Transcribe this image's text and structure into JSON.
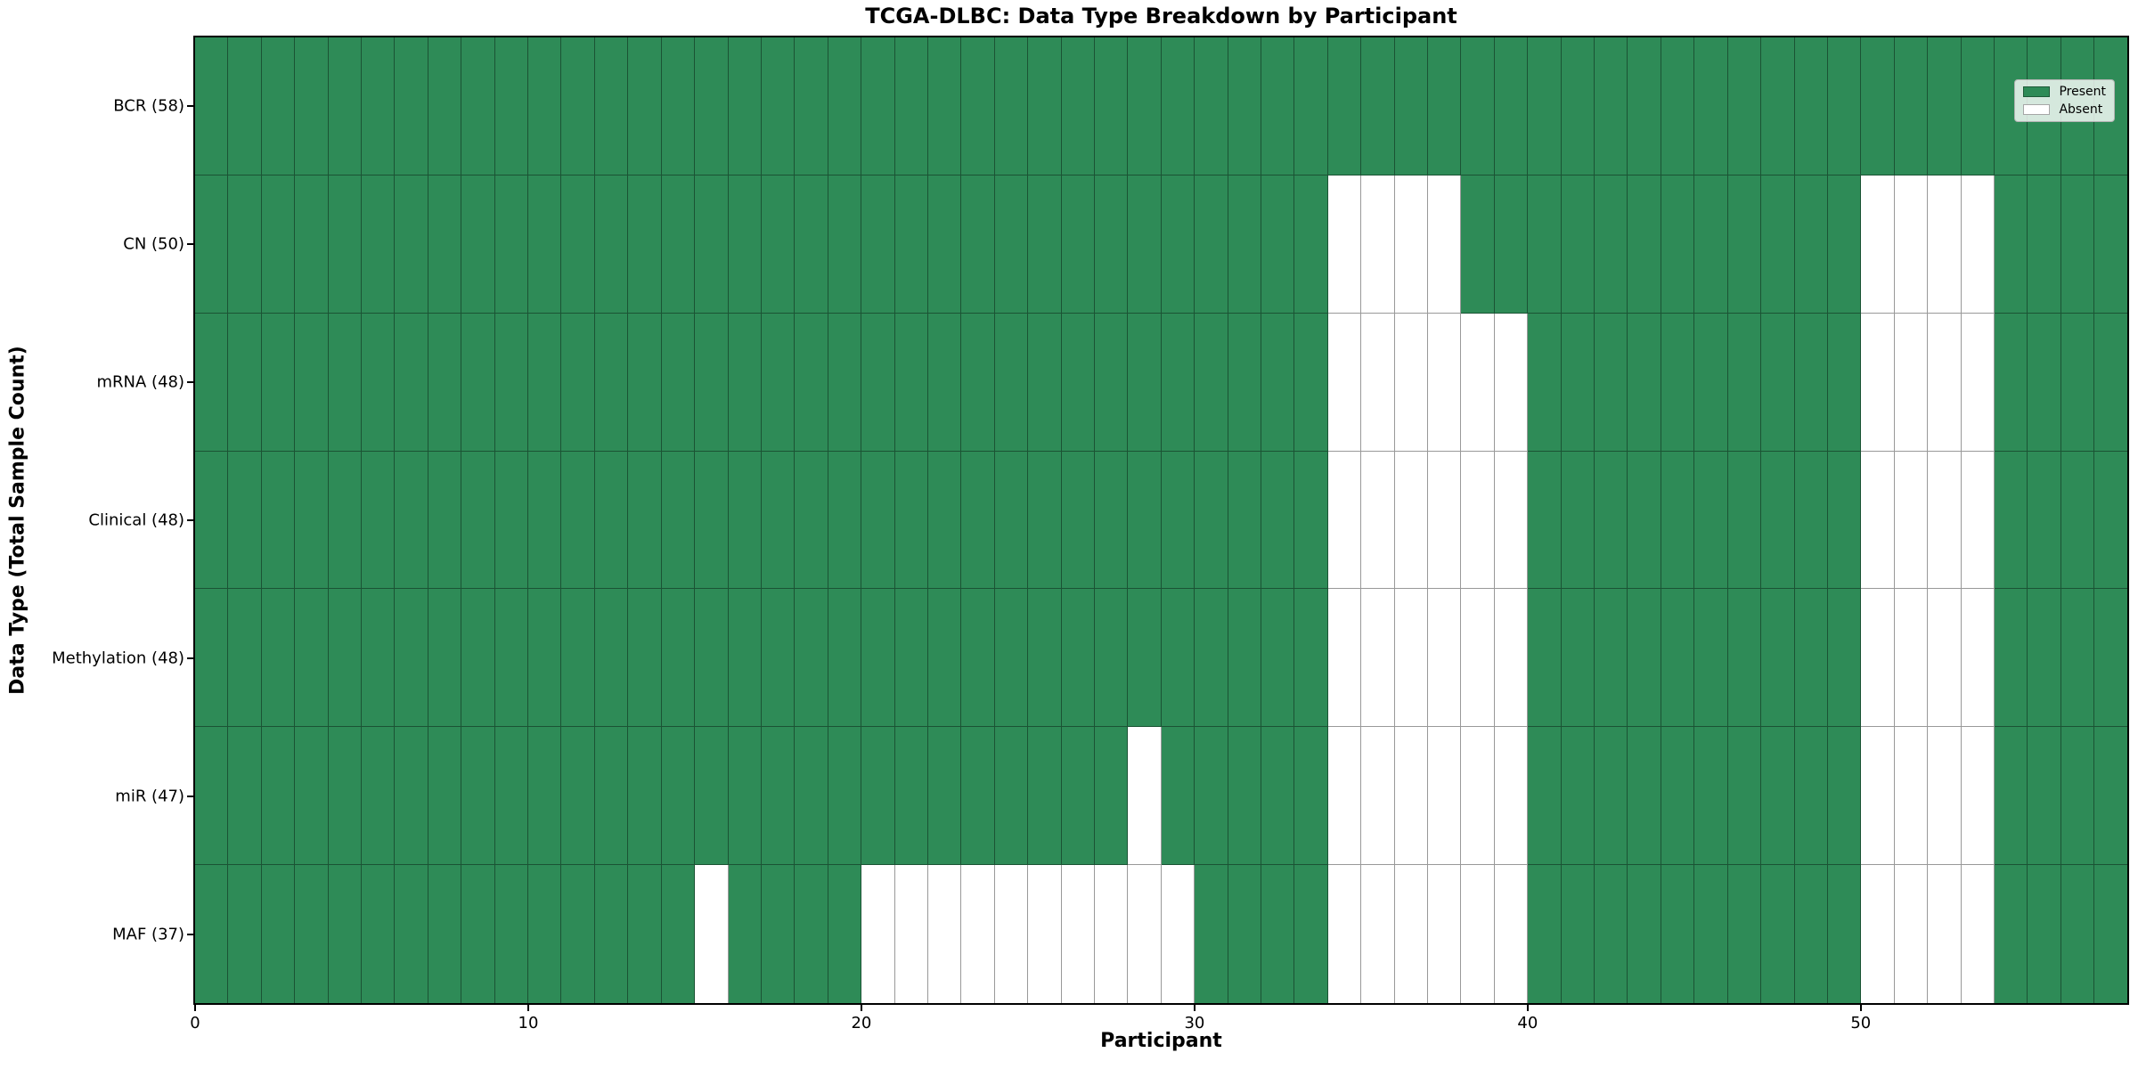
{
  "figure": {
    "title": "TCGA-DLBC: Data Type Breakdown by Participant",
    "xlabel": "Participant",
    "ylabel": "Data Type (Total Sample Count)"
  },
  "legend": {
    "position": "upper right",
    "entries": [
      {
        "label": "Present",
        "color": "#2E8B57"
      },
      {
        "label": "Absent",
        "color": "#FFFFFF"
      }
    ]
  },
  "colors": {
    "present": "#2E8B57",
    "absent": "#FFFFFF",
    "grid_line": "rgba(0,0,0,0.40)",
    "axis": "#000000",
    "legend_bg": "rgba(255,255,255,0.8)",
    "legend_border": "#b3b3b3"
  },
  "x_axis": {
    "range": [
      0,
      58
    ],
    "ticks": [
      {
        "value": 0,
        "label": "0"
      },
      {
        "value": 10,
        "label": "10"
      },
      {
        "value": 20,
        "label": "20"
      },
      {
        "value": 30,
        "label": "30"
      },
      {
        "value": 40,
        "label": "40"
      },
      {
        "value": 50,
        "label": "50"
      }
    ]
  },
  "chart_data": {
    "type": "heatmap",
    "title": "TCGA-DLBC: Data Type Breakdown by Participant",
    "xlabel": "Participant",
    "ylabel": "Data Type (Total Sample Count)",
    "n_participants": 58,
    "x_range": [
      0,
      58
    ],
    "x_tick_values": [
      0,
      10,
      20,
      30,
      40,
      50
    ],
    "grid": true,
    "legend_entries": [
      "Present",
      "Absent"
    ],
    "legend_position": "upper right",
    "cell_encoding": {
      "present": 1,
      "absent": 0
    },
    "rows": [
      {
        "label": "BCR (58)",
        "data_type": "BCR",
        "present_count": 58,
        "absent_participants": []
      },
      {
        "label": "CN (50)",
        "data_type": "CN",
        "present_count": 50,
        "absent_participants": [
          34,
          35,
          36,
          37,
          50,
          51,
          52,
          53
        ]
      },
      {
        "label": "mRNA (48)",
        "data_type": "mRNA",
        "present_count": 48,
        "absent_participants": [
          34,
          35,
          36,
          37,
          38,
          39,
          50,
          51,
          52,
          53
        ]
      },
      {
        "label": "Clinical (48)",
        "data_type": "Clinical",
        "present_count": 48,
        "absent_participants": [
          34,
          35,
          36,
          37,
          38,
          39,
          50,
          51,
          52,
          53
        ]
      },
      {
        "label": "Methylation (48)",
        "data_type": "Methylation",
        "present_count": 48,
        "absent_participants": [
          34,
          35,
          36,
          37,
          38,
          39,
          50,
          51,
          52,
          53
        ]
      },
      {
        "label": "miR (47)",
        "data_type": "miR",
        "present_count": 47,
        "absent_participants": [
          28,
          34,
          35,
          36,
          37,
          38,
          39,
          50,
          51,
          52,
          53
        ]
      },
      {
        "label": "MAF (37)",
        "data_type": "MAF",
        "present_count": 37,
        "absent_participants": [
          15,
          20,
          21,
          22,
          23,
          24,
          25,
          26,
          27,
          28,
          29,
          34,
          35,
          36,
          37,
          38,
          39,
          50,
          51,
          52,
          53
        ]
      }
    ]
  }
}
